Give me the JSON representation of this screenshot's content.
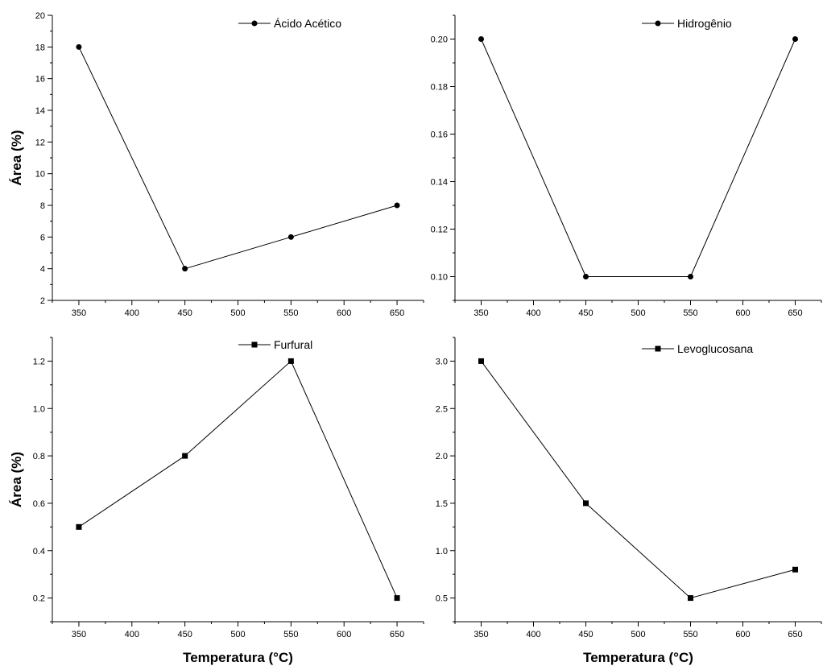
{
  "chart_data": [
    {
      "type": "line",
      "x": [
        350,
        450,
        550,
        650
      ],
      "series": [
        {
          "name": "Ácido Acético",
          "values": [
            18,
            4,
            6,
            8
          ],
          "marker": "diamond"
        }
      ],
      "xlabel": "",
      "ylabel": "Área (%)",
      "xlim": [
        325,
        675
      ],
      "ylim": [
        2,
        20
      ],
      "xticks": [
        350,
        400,
        450,
        500,
        550,
        600,
        650
      ],
      "yticks": [
        2,
        4,
        6,
        8,
        10,
        12,
        14,
        16,
        18,
        20
      ],
      "ytick_decimals": 0,
      "legend": "top-right",
      "grid": false
    },
    {
      "type": "line",
      "x": [
        350,
        450,
        550,
        650
      ],
      "series": [
        {
          "name": "Hidrogênio",
          "values": [
            0.2,
            0.1,
            0.1,
            0.2
          ],
          "marker": "circle"
        }
      ],
      "xlabel": "",
      "ylabel": "",
      "xlim": [
        325,
        675
      ],
      "ylim": [
        0.09,
        0.21
      ],
      "xticks": [
        350,
        400,
        450,
        500,
        550,
        600,
        650
      ],
      "yticks": [
        0.1,
        0.12,
        0.14,
        0.16,
        0.18,
        0.2
      ],
      "ytick_decimals": 2,
      "legend": "top-right",
      "grid": false
    },
    {
      "type": "line",
      "x": [
        350,
        450,
        550,
        650
      ],
      "series": [
        {
          "name": "Furfural",
          "values": [
            0.5,
            0.8,
            1.2,
            0.2
          ],
          "marker": "square"
        }
      ],
      "xlabel": "Temperatura (°C)",
      "ylabel": "Área (%)",
      "xlim": [
        325,
        675
      ],
      "ylim": [
        0.1,
        1.3
      ],
      "xticks": [
        350,
        400,
        450,
        500,
        550,
        600,
        650
      ],
      "yticks": [
        0.2,
        0.4,
        0.6,
        0.8,
        1.0,
        1.2
      ],
      "ytick_decimals": 1,
      "legend": "top-center",
      "grid": false
    },
    {
      "type": "line",
      "x": [
        350,
        450,
        550,
        650
      ],
      "series": [
        {
          "name": "Levoglucosana",
          "values": [
            3.0,
            1.5,
            0.5,
            0.8
          ],
          "marker": "square"
        }
      ],
      "xlabel": "Temperatura (°C)",
      "ylabel": "",
      "xlim": [
        325,
        675
      ],
      "ylim": [
        0.25,
        3.25
      ],
      "xticks": [
        350,
        400,
        450,
        500,
        550,
        600,
        650
      ],
      "yticks": [
        0.5,
        1.0,
        1.5,
        2.0,
        2.5,
        3.0
      ],
      "ytick_decimals": 1,
      "legend": "top-right",
      "grid": false
    }
  ]
}
